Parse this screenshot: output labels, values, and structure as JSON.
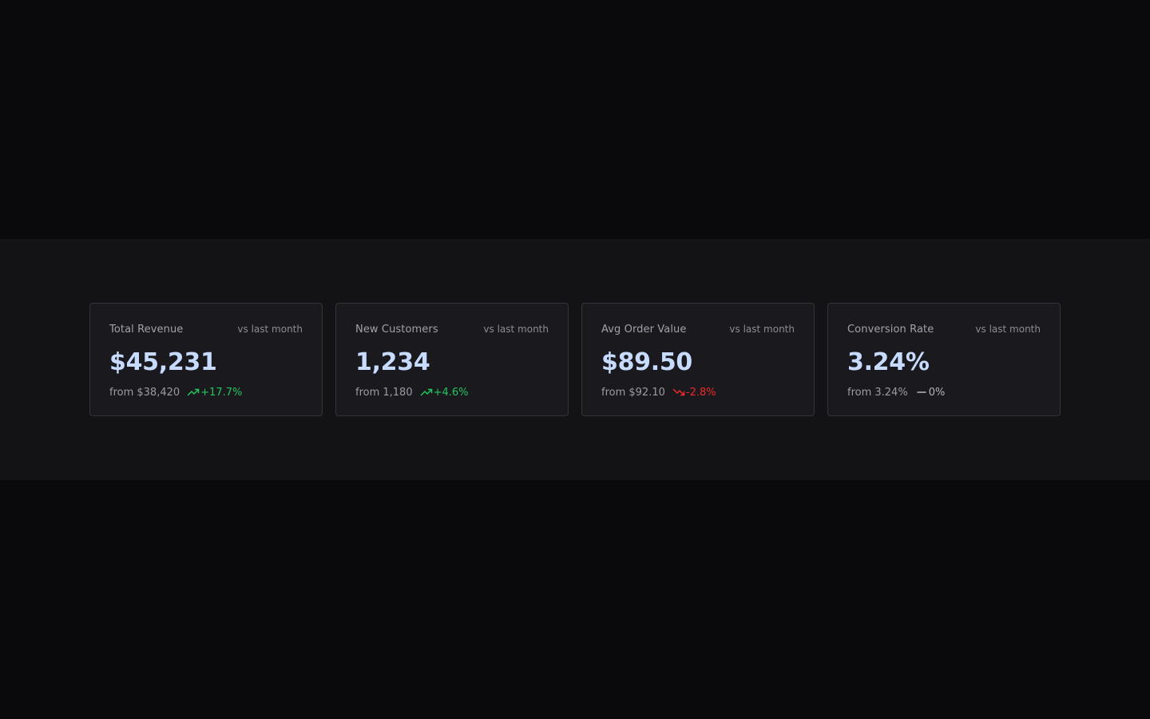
{
  "colors": {
    "page_background": "#0a0a0c",
    "band_background": "#131316",
    "card_background": "#1a1a1e",
    "card_border": "#33333a",
    "value_text": "#c7dbff",
    "positive": "#22c55e",
    "negative": "#ef2b2b",
    "neutral": "#b4b4bc"
  },
  "metrics": [
    {
      "title": "Total Revenue",
      "period": "vs last month",
      "value": "$45,231",
      "previous": "from $38,420",
      "change": "+17.7%",
      "trend": "up",
      "trend_icon": "trending-up-icon"
    },
    {
      "title": "New Customers",
      "period": "vs last month",
      "value": "1,234",
      "previous": "from 1,180",
      "change": "+4.6%",
      "trend": "up",
      "trend_icon": "trending-up-icon"
    },
    {
      "title": "Avg Order Value",
      "period": "vs last month",
      "value": "$89.50",
      "previous": "from $92.10",
      "change": "-2.8%",
      "trend": "down",
      "trend_icon": "trending-down-icon"
    },
    {
      "title": "Conversion Rate",
      "period": "vs last month",
      "value": "3.24%",
      "previous": "from 3.24%",
      "change": "0%",
      "trend": "flat",
      "trend_icon": "minus-icon"
    }
  ]
}
